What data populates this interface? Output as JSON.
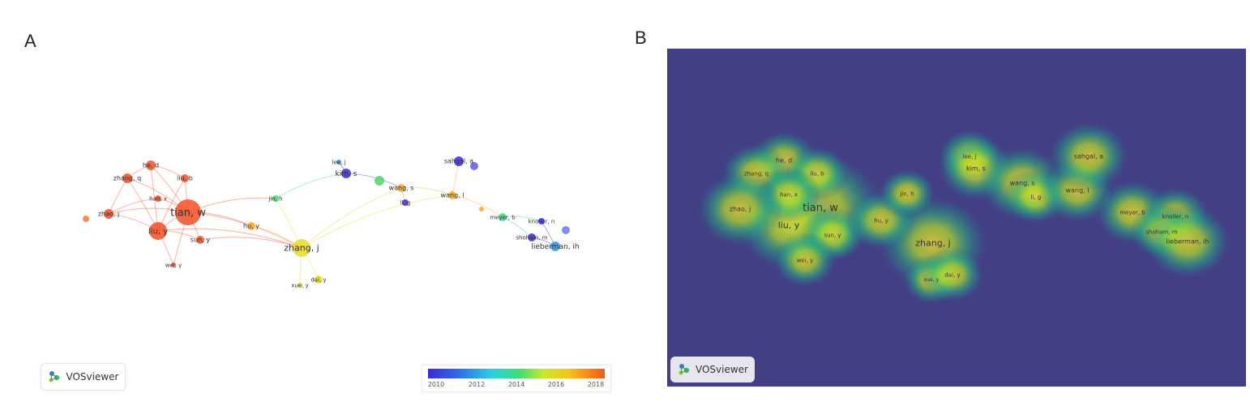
{
  "panels": {
    "a_label": "A",
    "b_label": "B"
  },
  "nodes": [
    {
      "id": "tian",
      "label": "tian, w",
      "year": 2018
    },
    {
      "id": "liu",
      "label": "liu, y",
      "year": 2018
    },
    {
      "id": "zhang",
      "label": "zhang, j",
      "year": 2016
    },
    {
      "id": "hed",
      "label": "he, d",
      "year": 2018
    },
    {
      "id": "zhangq",
      "label": "zhang, q",
      "year": 2018
    },
    {
      "id": "liub",
      "label": "liu, b",
      "year": 2018
    },
    {
      "id": "hanx",
      "label": "han, x",
      "year": 2018
    },
    {
      "id": "zhaoj",
      "label": "zhao, j",
      "year": 2018
    },
    {
      "id": "suny",
      "label": "sun, y",
      "year": 2018
    },
    {
      "id": "huy",
      "label": "hu, y",
      "year": 2017
    },
    {
      "id": "weiy",
      "label": "wei, y",
      "year": 2018
    },
    {
      "id": "jinh",
      "label": "jin, h",
      "year": 2014
    },
    {
      "id": "leej",
      "label": "lee, j",
      "year": 2012
    },
    {
      "id": "kims",
      "label": "kim, s",
      "year": 2010
    },
    {
      "id": "wangs",
      "label": "wang, s",
      "year": 2017
    },
    {
      "id": "lig",
      "label": "li, g",
      "year": 2010
    },
    {
      "id": "wangl",
      "label": "wang, l",
      "year": 2017
    },
    {
      "id": "sahgal",
      "label": "sahgal, a",
      "year": 2010
    },
    {
      "id": "meyer",
      "label": "meyer, b",
      "year": 2014
    },
    {
      "id": "knoller",
      "label": "knoller, n",
      "year": 2010
    },
    {
      "id": "shoham",
      "label": "shoham, m",
      "year": 2010
    },
    {
      "id": "lieberman",
      "label": "lieberman, ih",
      "year": 2012
    },
    {
      "id": "xuey",
      "label": "xue, y",
      "year": 2016
    },
    {
      "id": "daiy",
      "label": "dai, y",
      "year": 2016
    }
  ],
  "colorbar": {
    "ticks": [
      "2010",
      "2012",
      "2014",
      "2016",
      "2018"
    ]
  },
  "vosviewer_label": "VOSviewer",
  "colors": {
    "density_bg": "#433f85",
    "recent": "#f2502e",
    "old": "#5b5be0"
  }
}
